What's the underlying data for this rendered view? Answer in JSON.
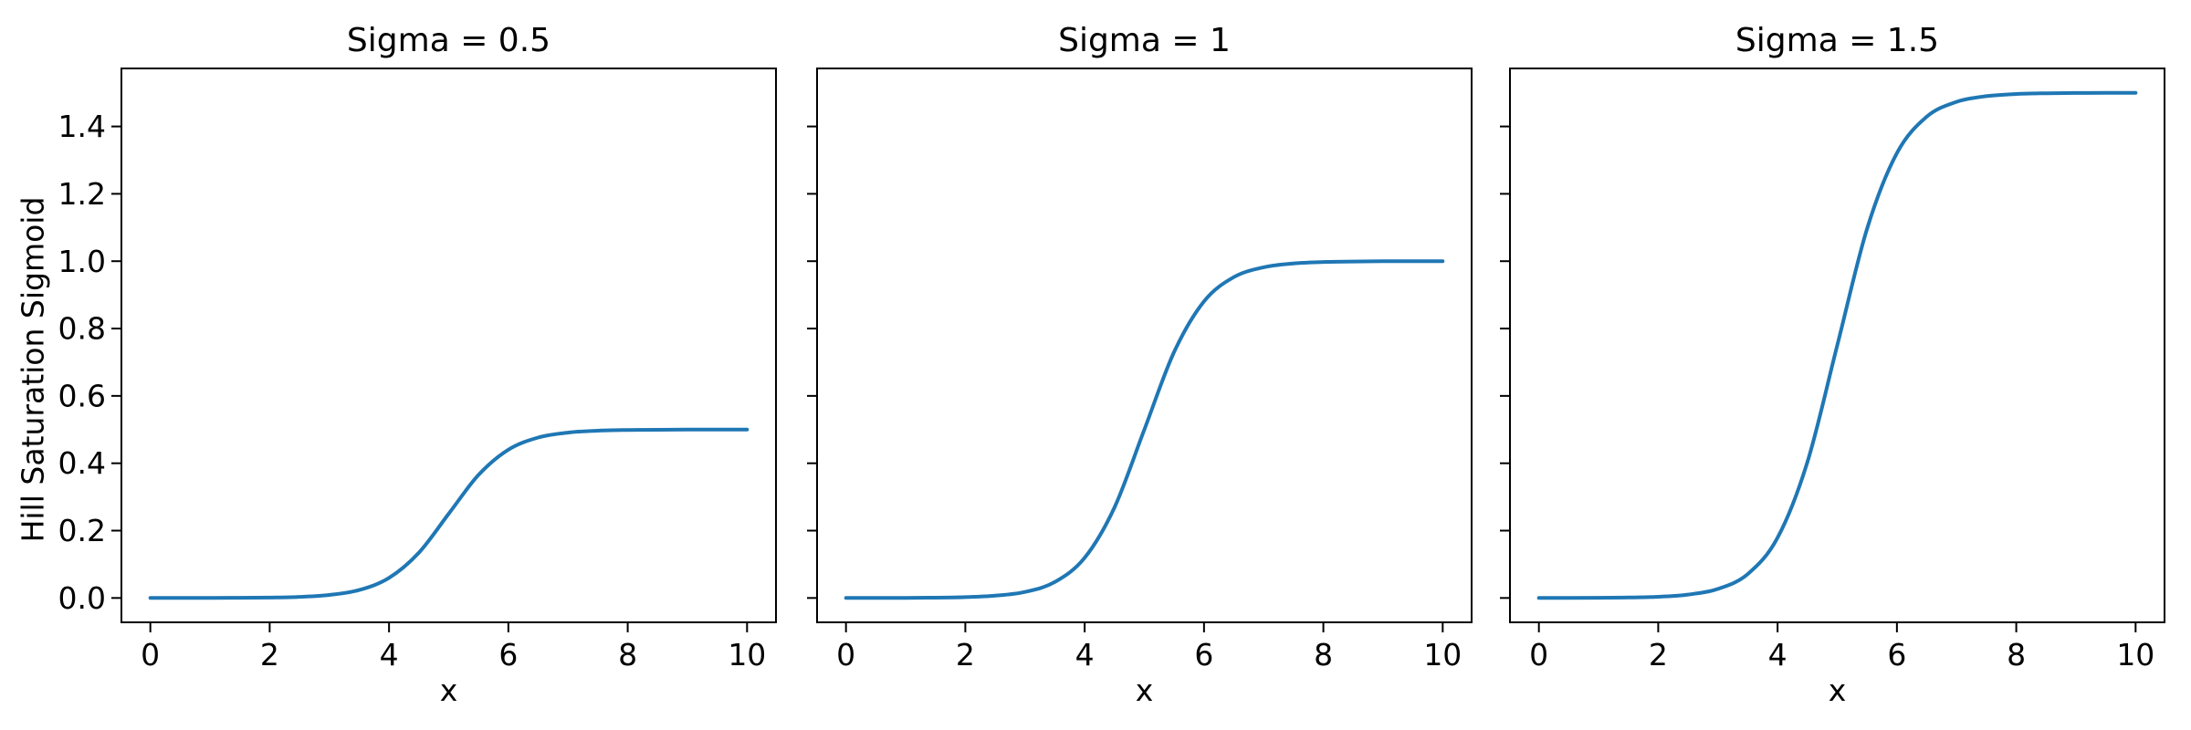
{
  "chart_data": {
    "type": "line",
    "layout": "1x3-subplots-shared-y",
    "xlabel": "x",
    "ylabel": "Hill Saturation Sigmoid",
    "xlim": [
      -0.5,
      10.5
    ],
    "ylim": [
      -0.075,
      1.575
    ],
    "xticks": [
      "0",
      "2",
      "4",
      "6",
      "8",
      "10"
    ],
    "yticks": [
      "0.0",
      "0.2",
      "0.4",
      "0.6",
      "0.8",
      "1.0",
      "1.2",
      "1.4"
    ],
    "grid": false,
    "legend": null,
    "line_color": "#1f77b4",
    "axes_color": "#000000",
    "background_color": "#ffffff",
    "x": [
      0,
      0.5,
      1,
      1.5,
      2,
      2.5,
      3,
      3.5,
      4,
      4.5,
      5,
      5.5,
      6,
      6.5,
      7,
      7.5,
      8,
      8.5,
      9,
      9.5,
      10
    ],
    "subplots": [
      {
        "title": "Sigma = 0.5",
        "sigma": 0.5,
        "saturation": 0.5,
        "midpoint_x": 5,
        "values": [
          0,
          0.0001,
          0.0002,
          0.0005,
          0.0012,
          0.0033,
          0.009,
          0.0237,
          0.0596,
          0.1345,
          0.25,
          0.3655,
          0.4404,
          0.4763,
          0.491,
          0.4967,
          0.4988,
          0.4995,
          0.4998,
          0.4999,
          0.5
        ]
      },
      {
        "title": "Sigma = 1",
        "sigma": 1,
        "saturation": 1.0,
        "midpoint_x": 5,
        "values": [
          0,
          0.0001,
          0.0003,
          0.0009,
          0.0025,
          0.0067,
          0.018,
          0.0474,
          0.1192,
          0.2689,
          0.5,
          0.7311,
          0.8808,
          0.9526,
          0.982,
          0.9933,
          0.9975,
          0.9991,
          0.9997,
          0.9999,
          1.0
        ]
      },
      {
        "title": "Sigma = 1.5",
        "sigma": 1.5,
        "saturation": 1.5,
        "midpoint_x": 5,
        "values": [
          0,
          0.0002,
          0.0005,
          0.0014,
          0.0037,
          0.01,
          0.027,
          0.0711,
          0.1788,
          0.4034,
          0.75,
          1.0966,
          1.3212,
          1.4289,
          1.473,
          1.49,
          1.4963,
          1.4986,
          1.4995,
          1.4998,
          1.5
        ]
      }
    ]
  }
}
